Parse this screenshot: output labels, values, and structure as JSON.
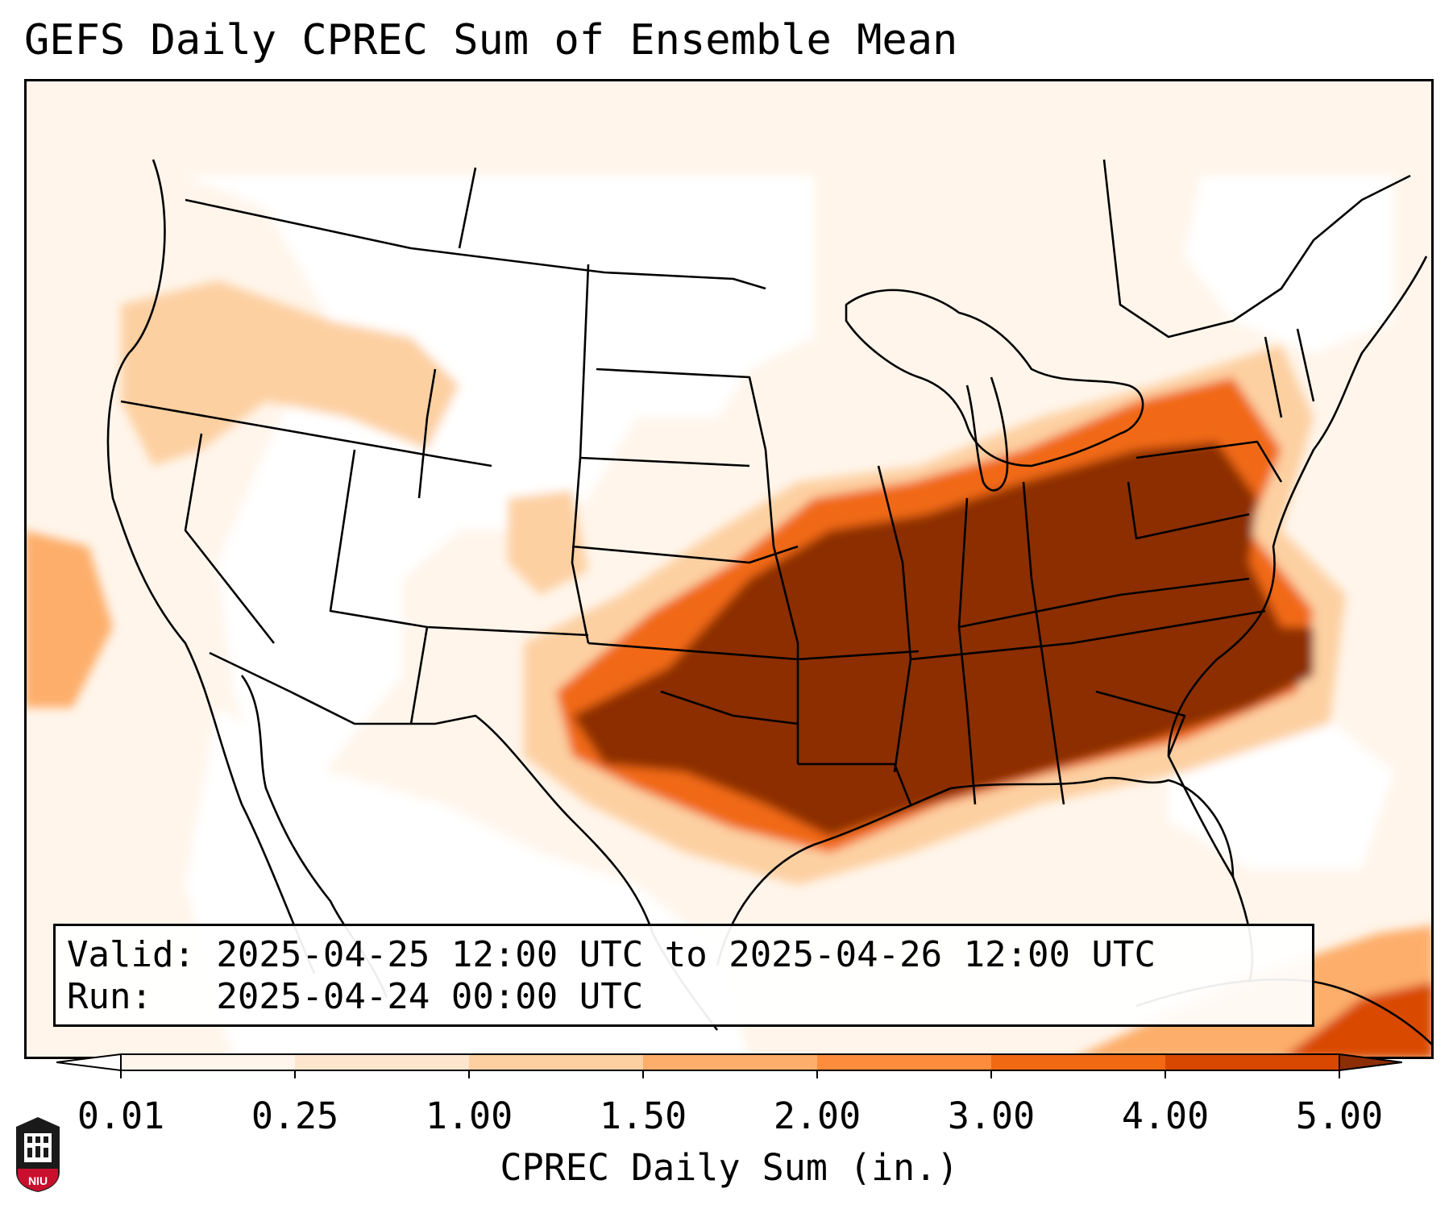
{
  "title": "GEFS Daily CPREC Sum of Ensemble Mean",
  "info_box": {
    "valid_line": "Valid: 2025-04-25 12:00 UTC to 2025-04-26 12:00 UTC",
    "run_line": "Run:   2025-04-24 00:00 UTC"
  },
  "colorbar": {
    "label": "CPREC Daily Sum (in.)",
    "ticks": [
      "0.01",
      "0.25",
      "1.00",
      "1.50",
      "2.00",
      "3.00",
      "4.00",
      "5.00"
    ],
    "colors": [
      "#fff5eb",
      "#fee6ce",
      "#fdd0a2",
      "#fdae6b",
      "#fd8d3c",
      "#f16913",
      "#d94801",
      "#8c2d04"
    ],
    "extend": "both"
  },
  "logo": {
    "text": "NIU",
    "colors": {
      "shield": "#000000",
      "band": "#c8102e"
    }
  }
}
